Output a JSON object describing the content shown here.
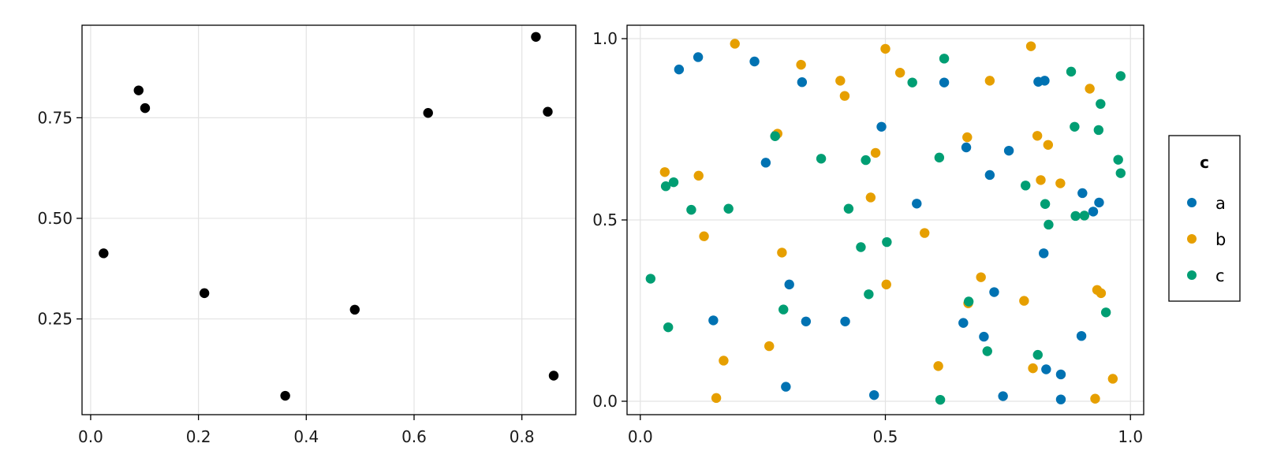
{
  "chart_data": [
    {
      "type": "scatter",
      "title": "",
      "xlabel": "",
      "ylabel": "",
      "xlim": [
        -0.016,
        0.9
      ],
      "ylim": [
        0.012,
        0.98
      ],
      "grid": true,
      "x_ticks": [
        0.0,
        0.2,
        0.4,
        0.6,
        0.8
      ],
      "x_tick_labels": [
        "0.0",
        "0.2",
        "0.4",
        "0.6",
        "0.8"
      ],
      "y_ticks": [
        0.25,
        0.5,
        0.75
      ],
      "y_tick_labels": [
        "0.25",
        "0.50",
        "0.75"
      ],
      "marker_color": "#000000",
      "series": [
        {
          "points": [
            [
              0.024,
              0.413
            ],
            [
              0.089,
              0.818
            ],
            [
              0.101,
              0.774
            ],
            [
              0.211,
              0.314
            ],
            [
              0.361,
              0.059
            ],
            [
              0.49,
              0.273
            ],
            [
              0.626,
              0.762
            ],
            [
              0.826,
              0.951
            ],
            [
              0.848,
              0.765
            ],
            [
              0.859,
              0.109
            ]
          ]
        }
      ]
    },
    {
      "type": "scatter",
      "title": "",
      "xlabel": "",
      "ylabel": "",
      "xlim": [
        -0.027,
        1.027
      ],
      "ylim": [
        -0.037,
        1.037
      ],
      "grid": true,
      "x_ticks": [
        0.0,
        0.5,
        1.0
      ],
      "x_tick_labels": [
        "0.0",
        "0.5",
        "1.0"
      ],
      "y_ticks": [
        0.0,
        0.5,
        1.0
      ],
      "y_tick_labels": [
        "0.0",
        "0.5",
        "1.0"
      ],
      "legend": {
        "title": "c",
        "position": "right"
      },
      "series": [
        {
          "name": "a",
          "color": "#0072b2",
          "points": [
            [
              0.079,
              0.915
            ],
            [
              0.118,
              0.949
            ],
            [
              0.233,
              0.937
            ],
            [
              0.256,
              0.658
            ],
            [
              0.276,
              0.733
            ],
            [
              0.33,
              0.88
            ],
            [
              0.304,
              0.322
            ],
            [
              0.338,
              0.22
            ],
            [
              0.297,
              0.04
            ],
            [
              0.149,
              0.223
            ],
            [
              0.418,
              0.22
            ],
            [
              0.492,
              0.757
            ],
            [
              0.477,
              0.017
            ],
            [
              0.564,
              0.545
            ],
            [
              0.62,
              0.879
            ],
            [
              0.659,
              0.216
            ],
            [
              0.665,
              0.7
            ],
            [
              0.701,
              0.178
            ],
            [
              0.713,
              0.624
            ],
            [
              0.722,
              0.301
            ],
            [
              0.74,
              0.014
            ],
            [
              0.752,
              0.691
            ],
            [
              0.812,
              0.881
            ],
            [
              0.825,
              0.884
            ],
            [
              0.823,
              0.408
            ],
            [
              0.828,
              0.088
            ],
            [
              0.858,
              0.074
            ],
            [
              0.858,
              0.005
            ],
            [
              0.9,
              0.18
            ],
            [
              0.902,
              0.574
            ],
            [
              0.924,
              0.523
            ],
            [
              0.936,
              0.548
            ]
          ]
        },
        {
          "name": "b",
          "color": "#e69f00",
          "points": [
            [
              0.05,
              0.632
            ],
            [
              0.119,
              0.622
            ],
            [
              0.13,
              0.455
            ],
            [
              0.155,
              0.009
            ],
            [
              0.17,
              0.112
            ],
            [
              0.193,
              0.986
            ],
            [
              0.263,
              0.152
            ],
            [
              0.28,
              0.738
            ],
            [
              0.289,
              0.41
            ],
            [
              0.328,
              0.928
            ],
            [
              0.408,
              0.884
            ],
            [
              0.417,
              0.842
            ],
            [
              0.47,
              0.562
            ],
            [
              0.48,
              0.685
            ],
            [
              0.5,
              0.972
            ],
            [
              0.502,
              0.322
            ],
            [
              0.53,
              0.906
            ],
            [
              0.58,
              0.464
            ],
            [
              0.608,
              0.097
            ],
            [
              0.667,
              0.728
            ],
            [
              0.669,
              0.27
            ],
            [
              0.695,
              0.342
            ],
            [
              0.713,
              0.884
            ],
            [
              0.783,
              0.277
            ],
            [
              0.797,
              0.979
            ],
            [
              0.801,
              0.091
            ],
            [
              0.81,
              0.732
            ],
            [
              0.817,
              0.61
            ],
            [
              0.832,
              0.707
            ],
            [
              0.857,
              0.601
            ],
            [
              0.917,
              0.862
            ],
            [
              0.928,
              0.007
            ],
            [
              0.932,
              0.307
            ],
            [
              0.94,
              0.298
            ],
            [
              0.964,
              0.062
            ]
          ]
        },
        {
          "name": "c",
          "color": "#009e73",
          "points": [
            [
              0.021,
              0.338
            ],
            [
              0.052,
              0.593
            ],
            [
              0.057,
              0.204
            ],
            [
              0.068,
              0.604
            ],
            [
              0.104,
              0.528
            ],
            [
              0.18,
              0.531
            ],
            [
              0.275,
              0.731
            ],
            [
              0.292,
              0.253
            ],
            [
              0.369,
              0.669
            ],
            [
              0.425,
              0.531
            ],
            [
              0.45,
              0.425
            ],
            [
              0.46,
              0.665
            ],
            [
              0.466,
              0.295
            ],
            [
              0.503,
              0.439
            ],
            [
              0.555,
              0.879
            ],
            [
              0.61,
              0.672
            ],
            [
              0.612,
              0.004
            ],
            [
              0.62,
              0.945
            ],
            [
              0.67,
              0.275
            ],
            [
              0.708,
              0.138
            ],
            [
              0.786,
              0.595
            ],
            [
              0.811,
              0.128
            ],
            [
              0.826,
              0.544
            ],
            [
              0.833,
              0.487
            ],
            [
              0.879,
              0.909
            ],
            [
              0.886,
              0.757
            ],
            [
              0.888,
              0.511
            ],
            [
              0.906,
              0.512
            ],
            [
              0.935,
              0.748
            ],
            [
              0.939,
              0.82
            ],
            [
              0.95,
              0.245
            ],
            [
              0.975,
              0.666
            ],
            [
              0.98,
              0.629
            ],
            [
              0.98,
              0.897
            ]
          ]
        }
      ]
    }
  ]
}
